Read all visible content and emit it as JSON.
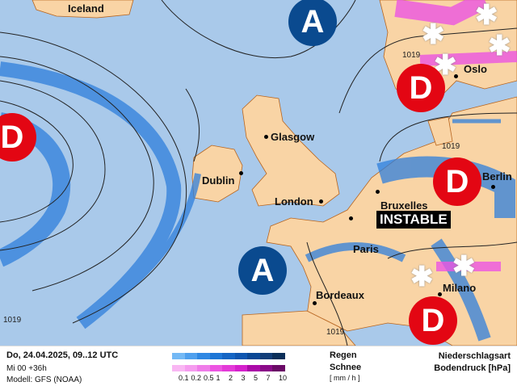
{
  "map": {
    "cities": [
      {
        "name": "Iceland",
        "region": true
      },
      {
        "name": "Glasgow"
      },
      {
        "name": "Dublin"
      },
      {
        "name": "London"
      },
      {
        "name": "Bruxelles"
      },
      {
        "name": "Paris"
      },
      {
        "name": "Bordeaux"
      },
      {
        "name": "Milano"
      },
      {
        "name": "Berlin"
      },
      {
        "name": "Oslo"
      }
    ],
    "pressure_systems": [
      {
        "type": "high",
        "label": "A"
      },
      {
        "type": "high",
        "label": "A"
      },
      {
        "type": "low",
        "label": "D"
      },
      {
        "type": "low",
        "label": "D"
      },
      {
        "type": "low",
        "label": "D"
      },
      {
        "type": "low",
        "label": "D"
      }
    ],
    "isobar_labels": [
      "1019",
      "1019",
      "1019",
      "1019"
    ],
    "annotation": "INSTABLE",
    "colors": {
      "sea": "#a9c9ea",
      "land": "#f9d4a5",
      "rain": "#2f7fdc",
      "snow": "#f08cf0",
      "low": "#e30613",
      "high": "#0a4a8f"
    }
  },
  "footer": {
    "date": "Do, 24.04.2025, 09..12 UTC",
    "run": "Mi 00 +36h",
    "model": "Modell: GFS (NOAA)",
    "rain_label": "Regen",
    "snow_label": "Schnee",
    "unit": "[ mm / h ]",
    "scale": [
      "0.1",
      "0.2",
      "0.5",
      "1",
      "2",
      "3",
      "5",
      "7",
      "10"
    ],
    "rain_colors": [
      "#74b9f5",
      "#4fa0ee",
      "#2f88e3",
      "#1e76d6",
      "#1565c4",
      "#0f56b0",
      "#0a4895",
      "#123e78",
      "#0b2f59"
    ],
    "snow_colors": [
      "#f9b7f3",
      "#f59cef",
      "#ef7ce9",
      "#ec55e2",
      "#e33ad8",
      "#d421cc",
      "#aa0aa8",
      "#8a0a88",
      "#6a0a66"
    ],
    "title1": "Niederschlagsart",
    "title2": "Bodendruck [hPa]"
  }
}
